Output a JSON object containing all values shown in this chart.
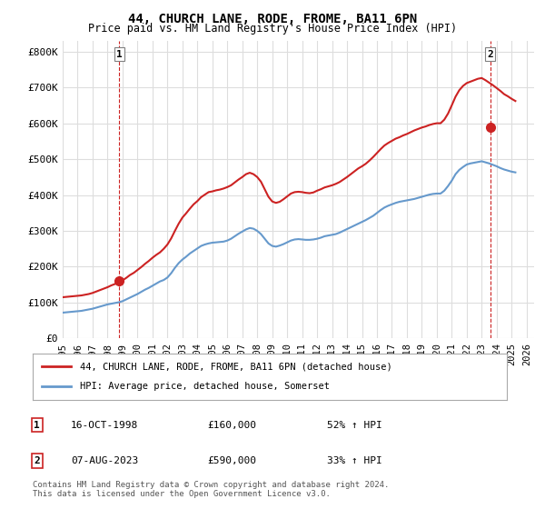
{
  "title": "44, CHURCH LANE, RODE, FROME, BA11 6PN",
  "subtitle": "Price paid vs. HM Land Registry's House Price Index (HPI)",
  "ylabel_ticks": [
    "£0",
    "£100K",
    "£200K",
    "£300K",
    "£400K",
    "£500K",
    "£600K",
    "£700K",
    "£800K"
  ],
  "ytick_values": [
    0,
    100000,
    200000,
    300000,
    400000,
    500000,
    600000,
    700000,
    800000
  ],
  "ylim": [
    0,
    830000
  ],
  "xlim_start": 1995.0,
  "xlim_end": 2026.5,
  "hpi_color": "#6699cc",
  "price_color": "#cc2222",
  "marker1_color": "#cc2222",
  "marker2_color": "#cc2222",
  "vline_color": "#cc2222",
  "grid_color": "#dddddd",
  "background_color": "#ffffff",
  "legend_label_price": "44, CHURCH LANE, RODE, FROME, BA11 6PN (detached house)",
  "legend_label_hpi": "HPI: Average price, detached house, Somerset",
  "annotation1_label": "1",
  "annotation1_date": "16-OCT-1998",
  "annotation1_price": "£160,000",
  "annotation1_hpi": "52% ↑ HPI",
  "annotation2_label": "2",
  "annotation2_date": "07-AUG-2023",
  "annotation2_price": "£590,000",
  "annotation2_hpi": "33% ↑ HPI",
  "footnote": "Contains HM Land Registry data © Crown copyright and database right 2024.\nThis data is licensed under the Open Government Licence v3.0.",
  "hpi_x": [
    1995.0,
    1995.25,
    1995.5,
    1995.75,
    1996.0,
    1996.25,
    1996.5,
    1996.75,
    1997.0,
    1997.25,
    1997.5,
    1997.75,
    1998.0,
    1998.25,
    1998.5,
    1998.75,
    1999.0,
    1999.25,
    1999.5,
    1999.75,
    2000.0,
    2000.25,
    2000.5,
    2000.75,
    2001.0,
    2001.25,
    2001.5,
    2001.75,
    2002.0,
    2002.25,
    2002.5,
    2002.75,
    2003.0,
    2003.25,
    2003.5,
    2003.75,
    2004.0,
    2004.25,
    2004.5,
    2004.75,
    2005.0,
    2005.25,
    2005.5,
    2005.75,
    2006.0,
    2006.25,
    2006.5,
    2006.75,
    2007.0,
    2007.25,
    2007.5,
    2007.75,
    2008.0,
    2008.25,
    2008.5,
    2008.75,
    2009.0,
    2009.25,
    2009.5,
    2009.75,
    2010.0,
    2010.25,
    2010.5,
    2010.75,
    2011.0,
    2011.25,
    2011.5,
    2011.75,
    2012.0,
    2012.25,
    2012.5,
    2012.75,
    2013.0,
    2013.25,
    2013.5,
    2013.75,
    2014.0,
    2014.25,
    2014.5,
    2014.75,
    2015.0,
    2015.25,
    2015.5,
    2015.75,
    2016.0,
    2016.25,
    2016.5,
    2016.75,
    2017.0,
    2017.25,
    2017.5,
    2017.75,
    2018.0,
    2018.25,
    2018.5,
    2018.75,
    2019.0,
    2019.25,
    2019.5,
    2019.75,
    2020.0,
    2020.25,
    2020.5,
    2020.75,
    2021.0,
    2021.25,
    2021.5,
    2021.75,
    2022.0,
    2022.25,
    2022.5,
    2022.75,
    2023.0,
    2023.25,
    2023.5,
    2023.75,
    2024.0,
    2024.25,
    2024.5,
    2024.75,
    2025.0,
    2025.25
  ],
  "hpi_y": [
    72000,
    73000,
    74000,
    75000,
    76000,
    77000,
    79000,
    81000,
    83000,
    86000,
    89000,
    92000,
    95000,
    97000,
    99000,
    101000,
    104000,
    109000,
    114000,
    119000,
    124000,
    130000,
    136000,
    141000,
    147000,
    153000,
    159000,
    163000,
    170000,
    182000,
    197000,
    210000,
    220000,
    228000,
    237000,
    244000,
    251000,
    258000,
    262000,
    265000,
    267000,
    268000,
    269000,
    270000,
    273000,
    278000,
    285000,
    292000,
    298000,
    304000,
    308000,
    306000,
    300000,
    291000,
    278000,
    265000,
    258000,
    256000,
    259000,
    263000,
    268000,
    273000,
    276000,
    277000,
    276000,
    275000,
    275000,
    276000,
    278000,
    281000,
    285000,
    287000,
    289000,
    291000,
    295000,
    300000,
    305000,
    310000,
    315000,
    320000,
    325000,
    330000,
    336000,
    342000,
    350000,
    358000,
    365000,
    370000,
    374000,
    378000,
    381000,
    383000,
    385000,
    387000,
    389000,
    392000,
    395000,
    398000,
    401000,
    403000,
    404000,
    404000,
    412000,
    425000,
    440000,
    458000,
    470000,
    478000,
    485000,
    488000,
    490000,
    492000,
    494000,
    491000,
    488000,
    484000,
    480000,
    475000,
    471000,
    468000,
    465000,
    463000
  ],
  "price_x": [
    1995.0,
    1995.25,
    1995.5,
    1995.75,
    1996.0,
    1996.25,
    1996.5,
    1996.75,
    1997.0,
    1997.25,
    1997.5,
    1997.75,
    1998.0,
    1998.25,
    1998.5,
    1998.75,
    1999.0,
    1999.25,
    1999.5,
    1999.75,
    2000.0,
    2000.25,
    2000.5,
    2000.75,
    2001.0,
    2001.25,
    2001.5,
    2001.75,
    2002.0,
    2002.25,
    2002.5,
    2002.75,
    2003.0,
    2003.25,
    2003.5,
    2003.75,
    2004.0,
    2004.25,
    2004.5,
    2004.75,
    2005.0,
    2005.25,
    2005.5,
    2005.75,
    2006.0,
    2006.25,
    2006.5,
    2006.75,
    2007.0,
    2007.25,
    2007.5,
    2007.75,
    2008.0,
    2008.25,
    2008.5,
    2008.75,
    2009.0,
    2009.25,
    2009.5,
    2009.75,
    2010.0,
    2010.25,
    2010.5,
    2010.75,
    2011.0,
    2011.25,
    2011.5,
    2011.75,
    2012.0,
    2012.25,
    2012.5,
    2012.75,
    2013.0,
    2013.25,
    2013.5,
    2013.75,
    2014.0,
    2014.25,
    2014.5,
    2014.75,
    2015.0,
    2015.25,
    2015.5,
    2015.75,
    2016.0,
    2016.25,
    2016.5,
    2016.75,
    2017.0,
    2017.25,
    2017.5,
    2017.75,
    2018.0,
    2018.25,
    2018.5,
    2018.75,
    2019.0,
    2019.25,
    2019.5,
    2019.75,
    2020.0,
    2020.25,
    2020.5,
    2020.75,
    2021.0,
    2021.25,
    2021.5,
    2021.75,
    2022.0,
    2022.25,
    2022.5,
    2022.75,
    2023.0,
    2023.25,
    2023.5,
    2023.75,
    2024.0,
    2024.25,
    2024.5,
    2024.75,
    2025.0,
    2025.25
  ],
  "price_y": [
    115000,
    116000,
    117000,
    118000,
    119000,
    120000,
    122000,
    124000,
    127000,
    131000,
    135000,
    139000,
    143000,
    148000,
    152000,
    157000,
    162000,
    169000,
    177000,
    183000,
    191000,
    199000,
    208000,
    216000,
    225000,
    233000,
    240000,
    250000,
    262000,
    279000,
    300000,
    320000,
    337000,
    349000,
    362000,
    374000,
    383000,
    394000,
    401000,
    408000,
    410000,
    413000,
    415000,
    418000,
    422000,
    427000,
    435000,
    443000,
    450000,
    458000,
    462000,
    458000,
    450000,
    437000,
    416000,
    395000,
    382000,
    378000,
    381000,
    388000,
    396000,
    404000,
    408000,
    409000,
    408000,
    406000,
    405000,
    407000,
    412000,
    416000,
    421000,
    424000,
    427000,
    431000,
    436000,
    443000,
    450000,
    458000,
    466000,
    474000,
    480000,
    487000,
    496000,
    506000,
    517000,
    528000,
    538000,
    545000,
    551000,
    557000,
    561000,
    566000,
    570000,
    575000,
    580000,
    584000,
    588000,
    591000,
    595000,
    598000,
    600000,
    600000,
    610000,
    627000,
    650000,
    674000,
    692000,
    704000,
    712000,
    716000,
    720000,
    724000,
    726000,
    720000,
    713000,
    706000,
    698000,
    690000,
    681000,
    675000,
    668000,
    662000
  ],
  "sale1_x": 1998.79,
  "sale1_y": 160000,
  "sale2_x": 2023.58,
  "sale2_y": 590000,
  "vline1_x": 1998.79,
  "vline2_x": 2023.58
}
